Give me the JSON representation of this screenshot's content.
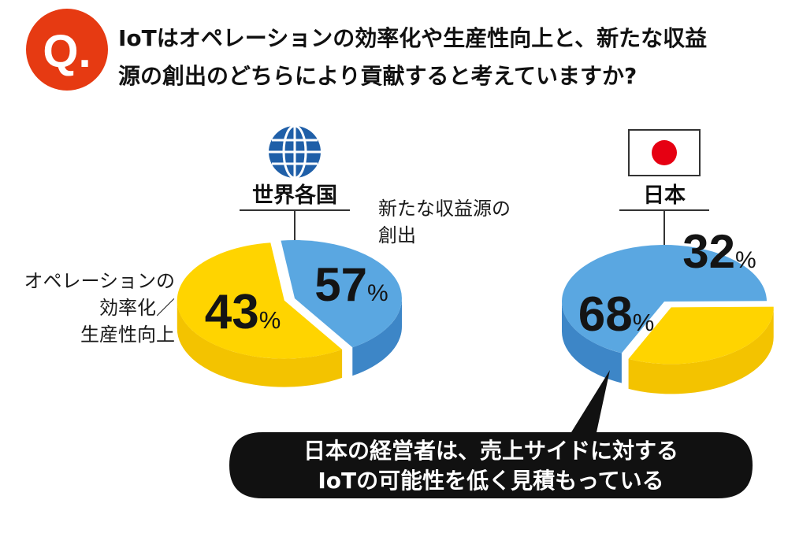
{
  "question": {
    "badge": "Q.",
    "lines": [
      "IoTはオペレーションの効率化や生産性向上と、新たな収益",
      "源の創出のどちらにより貢献すると考えていますか?"
    ]
  },
  "labels": {
    "operations": [
      "オペレーションの",
      "効率化／",
      "生産性向上"
    ],
    "revenue": [
      "新たな収益源の",
      "創出"
    ]
  },
  "chart_data": [
    {
      "type": "pie",
      "title": "世界各国",
      "icon": "globe-icon",
      "categories": [
        "オペレーションの効率化／生産性向上",
        "新たな収益源の創出"
      ],
      "values": [
        43,
        57
      ],
      "value_labels": [
        "43",
        "57"
      ],
      "unit": "%",
      "colors": [
        "#5aa7e1",
        "#ffd400"
      ]
    },
    {
      "type": "pie",
      "title": "日本",
      "icon": "japan-flag-icon",
      "categories": [
        "オペレーションの効率化／生産性向上",
        "新たな収益源の創出"
      ],
      "values": [
        68,
        32
      ],
      "value_labels": [
        "68",
        "32"
      ],
      "unit": "%",
      "colors": [
        "#5aa7e1",
        "#ffd400"
      ]
    }
  ],
  "callout": {
    "lines": [
      "日本の経営者は、売上サイドに対する",
      "IoTの可能性を低く見積もっている"
    ]
  },
  "colors": {
    "accent": "#e63a12",
    "blue_top": "#5aa7e1",
    "blue_side": "#3d86c7",
    "yellow_top": "#ffd400",
    "yellow_side": "#f3c300",
    "globe": "#1f5fa8",
    "flag_red": "#e60012",
    "callout_bg": "#111111"
  }
}
